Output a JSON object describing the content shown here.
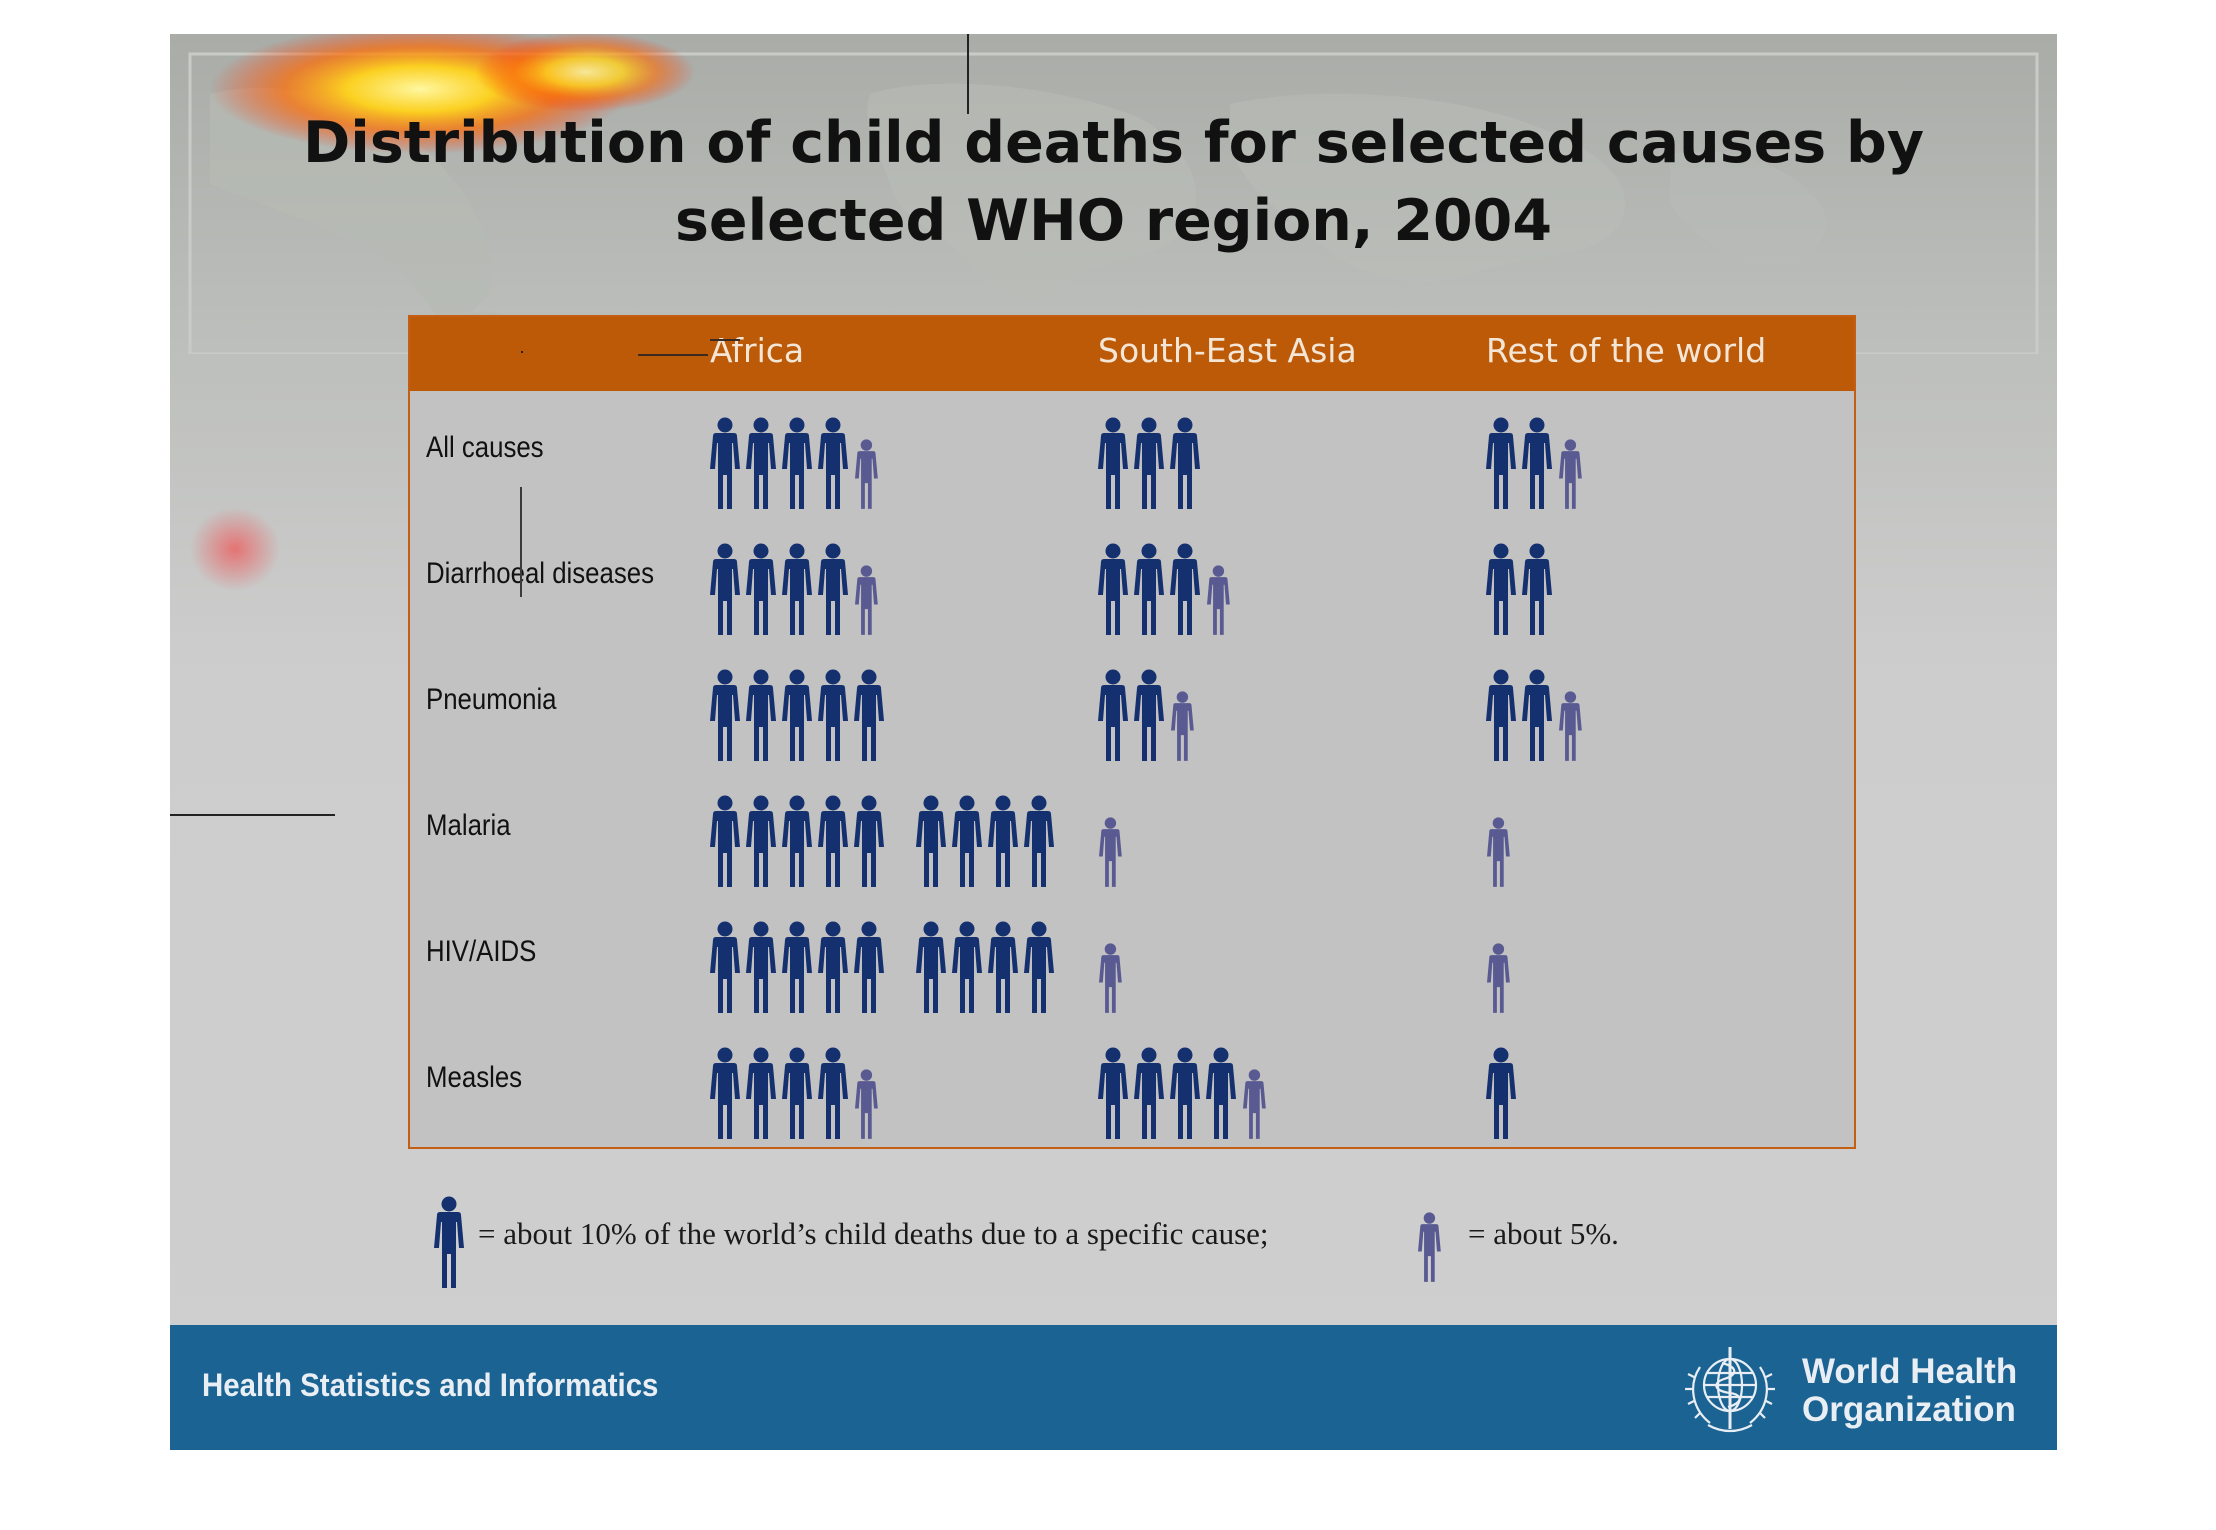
{
  "slide": {
    "title_line1": "Distribution of child deaths for selected causes by",
    "title_line2": "selected WHO region, 2004"
  },
  "chart_data": {
    "type": "table",
    "unit": "share of the world's child deaths due to a specific cause (%)",
    "columns": [
      "Africa",
      "South-East Asia",
      "Rest of the world"
    ],
    "rows": [
      {
        "label": "All causes",
        "values": [
          45,
          30,
          25
        ]
      },
      {
        "label": "Diarrhoeal diseases",
        "values": [
          45,
          35,
          20
        ]
      },
      {
        "label": "Pneumonia",
        "values": [
          50,
          25,
          25
        ]
      },
      {
        "label": "Malaria",
        "values": [
          90,
          5,
          5
        ]
      },
      {
        "label": "HIV/AIDS",
        "values": [
          90,
          5,
          5
        ]
      },
      {
        "label": "Measles",
        "values": [
          45,
          45,
          10
        ]
      }
    ],
    "legend": {
      "large_figure_text": "= about 10% of the world’s child deaths due to a specific cause;",
      "small_figure_text": "= about 5%.",
      "large_figure_value": 10,
      "small_figure_value": 5
    },
    "colors": {
      "large_figure": "#15306f",
      "small_figure": "#5a5a92",
      "header_band": "#bd5a08"
    }
  },
  "footer": {
    "left_text": "Health Statistics and Informatics",
    "org_name_line1": "World Health",
    "org_name_line2": "Organization",
    "emblem_icon": "who-emblem-icon"
  }
}
